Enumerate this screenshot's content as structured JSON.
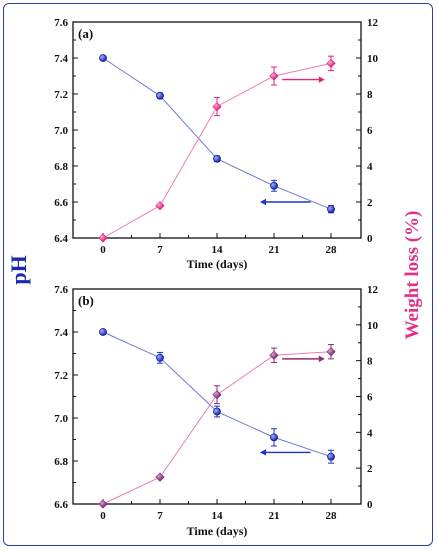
{
  "colors": {
    "ph_series": "#1f2fd0",
    "ph_line": "#6a7ad8",
    "weight_series_a": "#e8207a",
    "weight_series_b": "#8e2a78",
    "weight_line": "#f07ab8",
    "left_axis_label": "#1a2aa8",
    "right_axis_label": "#e0308a",
    "frame": "#2a3fb0"
  },
  "shared": {
    "left_axis_label": "pH",
    "right_axis_label": "Weight loss (%)"
  },
  "chart_data": [
    {
      "type": "line",
      "panel_label": "(a)",
      "xlabel": "Time (days)",
      "x": [
        0,
        7,
        14,
        21,
        28
      ],
      "xticks": [
        "0",
        "7",
        "14",
        "21",
        "28"
      ],
      "y_left_lim": [
        6.4,
        7.6
      ],
      "y_left_ticks": [
        "6.4",
        "6.6",
        "6.8",
        "7.0",
        "7.2",
        "7.4",
        "7.6"
      ],
      "y_right_lim": [
        0,
        12
      ],
      "y_right_ticks": [
        "0",
        "2",
        "4",
        "6",
        "8",
        "10",
        "12"
      ],
      "series": [
        {
          "axis": "left",
          "values": [
            7.4,
            7.19,
            6.84,
            6.69,
            6.56
          ],
          "errors": [
            0,
            0.015,
            0.015,
            0.03,
            0.02
          ]
        },
        {
          "axis": "right",
          "values": [
            0.0,
            1.8,
            7.3,
            9.0,
            9.7
          ],
          "errors": [
            0,
            0,
            0.5,
            0.5,
            0.4
          ]
        }
      ],
      "arrows": [
        {
          "direction": "left",
          "x": 21,
          "y_left": 6.6,
          "span_days": 4.5
        },
        {
          "direction": "right",
          "x": 22,
          "y_right": 8.8,
          "span_days": 4.5
        }
      ]
    },
    {
      "type": "line",
      "panel_label": "(b)",
      "xlabel": "Time (days)",
      "x": [
        0,
        7,
        14,
        21,
        28
      ],
      "xticks": [
        "0",
        "7",
        "14",
        "21",
        "28"
      ],
      "y_left_lim": [
        6.6,
        7.6
      ],
      "y_left_ticks": [
        "6.6",
        "6.8",
        "7.0",
        "7.2",
        "7.4",
        "7.6"
      ],
      "y_right_lim": [
        0,
        12
      ],
      "y_right_ticks": [
        "0",
        "2",
        "4",
        "6",
        "8",
        "10",
        "12"
      ],
      "series": [
        {
          "axis": "left",
          "values": [
            7.4,
            7.28,
            7.03,
            6.91,
            6.82
          ],
          "errors": [
            0,
            0.025,
            0.025,
            0.04,
            0.03
          ]
        },
        {
          "axis": "right",
          "values": [
            0.0,
            1.5,
            6.1,
            8.3,
            8.5
          ],
          "errors": [
            0,
            0,
            0.5,
            0.4,
            0.4
          ]
        }
      ],
      "arrows": [
        {
          "direction": "left",
          "x": 21,
          "y_left": 6.84,
          "span_days": 4.5
        },
        {
          "direction": "right",
          "x": 22,
          "y_right": 8.1,
          "span_days": 4.5
        }
      ]
    }
  ]
}
